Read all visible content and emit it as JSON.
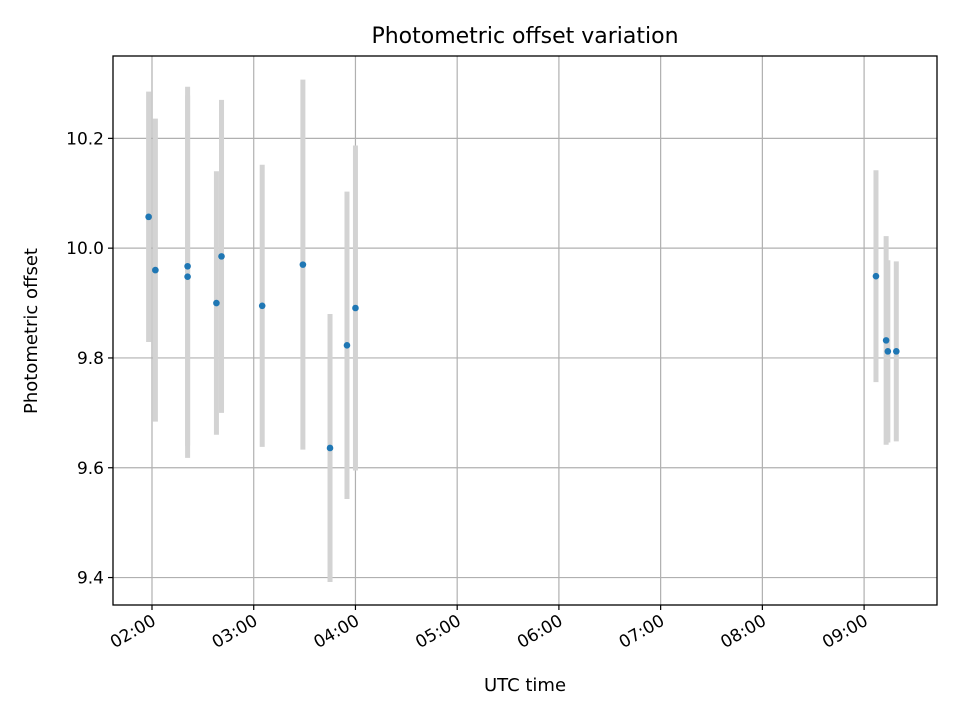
{
  "chart_data": {
    "type": "scatter",
    "title": "Photometric offset variation",
    "xlabel": "UTC time",
    "ylabel": "Photometric offset",
    "x_tick_labels": [
      "02:00",
      "03:00",
      "04:00",
      "05:00",
      "06:00",
      "07:00",
      "08:00",
      "09:00"
    ],
    "y_tick_labels": [
      "9.4",
      "9.6",
      "9.8",
      "10.0",
      "10.2"
    ],
    "y_ticks": [
      9.4,
      9.6,
      9.8,
      10.0,
      10.2
    ],
    "xlim": [
      "01:37",
      "09:43"
    ],
    "ylim": [
      9.35,
      10.35
    ],
    "grid": true,
    "colors": {
      "point": "#1f77b4",
      "errorbar": "#d3d3d3",
      "grid": "#b0b0b0",
      "axes": "#000000"
    },
    "points": [
      {
        "x": "01:58",
        "y": 10.057,
        "err": 0.228
      },
      {
        "x": "02:02",
        "y": 9.96,
        "err": 0.276
      },
      {
        "x": "02:21",
        "y": 9.967,
        "err": 0.327
      },
      {
        "x": "02:21",
        "y": 9.948,
        "err": 0.33
      },
      {
        "x": "02:38",
        "y": 9.9,
        "err": 0.24
      },
      {
        "x": "02:41",
        "y": 9.985,
        "err": 0.285
      },
      {
        "x": "03:05",
        "y": 9.895,
        "err": 0.257
      },
      {
        "x": "03:29",
        "y": 9.97,
        "err": 0.337
      },
      {
        "x": "03:45",
        "y": 9.636,
        "err": 0.244
      },
      {
        "x": "03:55",
        "y": 9.823,
        "err": 0.28
      },
      {
        "x": "04:00",
        "y": 9.891,
        "err": 0.296
      },
      {
        "x": "09:07",
        "y": 9.949,
        "err": 0.193
      },
      {
        "x": "09:13",
        "y": 9.832,
        "err": 0.19
      },
      {
        "x": "09:14",
        "y": 9.812,
        "err": 0.166
      },
      {
        "x": "09:19",
        "y": 9.812,
        "err": 0.164
      }
    ]
  }
}
